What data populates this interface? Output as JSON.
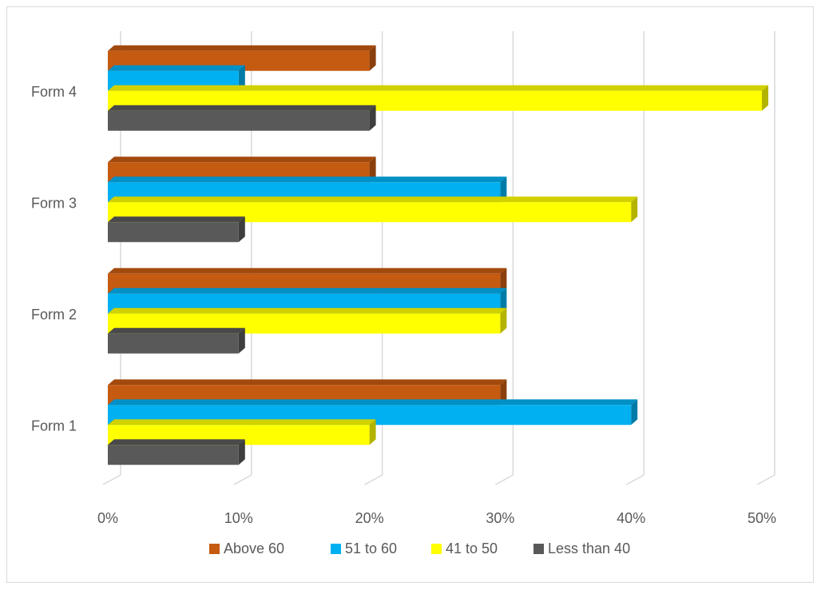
{
  "chart_data": {
    "type": "bar",
    "orientation": "horizontal",
    "style": "3d-clustered",
    "categories": [
      "Form 1",
      "Form 2",
      "Form 3",
      "Form 4"
    ],
    "series": [
      {
        "name": "Above 60",
        "color": "#C55A11",
        "values": [
          0.3,
          0.3,
          0.2,
          0.2
        ]
      },
      {
        "name": "51 to 60",
        "color": "#00B0F0",
        "values": [
          0.4,
          0.3,
          0.3,
          0.1
        ]
      },
      {
        "name": "41 to 50",
        "color": "#FFFF00",
        "values": [
          0.2,
          0.3,
          0.4,
          0.5
        ]
      },
      {
        "name": "Less than 40",
        "color": "#595959",
        "values": [
          0.1,
          0.1,
          0.1,
          0.2
        ]
      }
    ],
    "x_ticks": [
      "0%",
      "10%",
      "20%",
      "30%",
      "40%",
      "50%"
    ],
    "xlim": [
      0,
      0.5
    ],
    "title": "",
    "xlabel": "",
    "ylabel": "",
    "grid": true,
    "legend_position": "bottom"
  }
}
